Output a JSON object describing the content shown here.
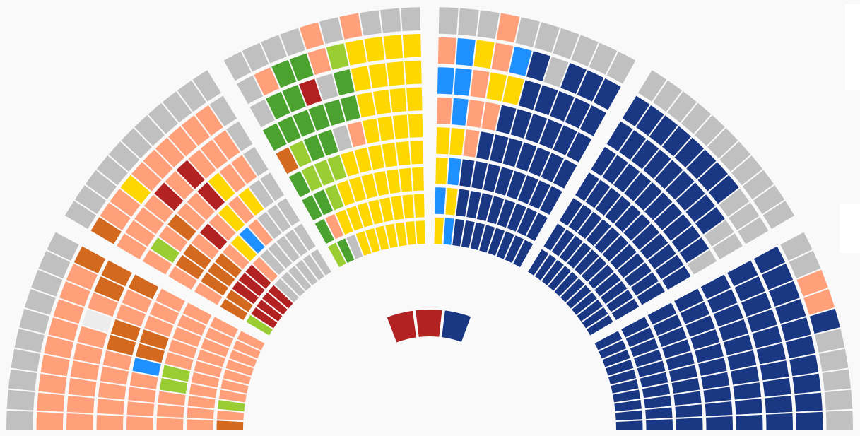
{
  "chart_data": {
    "type": "parliament",
    "sectors": [
      {
        "rows": [
          [
            "#c0c0c0",
            "#c0c0c0",
            "#c0c0c0",
            "#c0c0c0",
            "#c0c0c0",
            "#c0c0c0",
            "#c0c0c0",
            "#c0c0c0",
            "#c0c0c0",
            "#c0c0c0"
          ],
          [
            "#ffa07a",
            "#ffa07a",
            "#ffa07a",
            "#ffa07a",
            "#ffa07a",
            "#ffa07a",
            "#ffa07a",
            "#ffa07a",
            "#ffa07a",
            "#d2691e"
          ],
          [
            "#ffa07a",
            "#ffa07a",
            "#ffa07a",
            "#ffa07a",
            "#ffa07a",
            "#ffa07a",
            "#ececec",
            "#ffa07a",
            "#d2691e",
            "#d2691e"
          ],
          [
            "#ffa07a",
            "#ffa07a",
            "#ffa07a",
            "#ffa07a",
            "#ffa07a",
            "#d2691e",
            "#d2691e",
            "#ffa07a",
            "#ffa07a",
            "#d2691e"
          ],
          [
            "#ffa07a",
            "#ffa07a",
            "#ffa07a",
            "#ffa07a",
            "#1e90ff",
            "#d2691e",
            "#d2691e",
            "#ffa07a",
            "#ffa07a",
            "#ffa07a"
          ],
          [
            "#ffa07a",
            "#ffa07a",
            "#ffa07a",
            "#9acd32",
            "#9acd32",
            "#ffa07a",
            "#ffa07a",
            "#ffa07a",
            "#ffa07a",
            "#ffa07a"
          ],
          [
            "#ffa07a",
            "#ffa07a",
            "#ffa07a",
            "#ffa07a",
            "#ffa07a",
            "#ffa07a",
            "#ffa07a",
            "#ffa07a",
            "#ffa07a",
            "#ffa07a"
          ],
          [
            "#d2691e",
            "#ffa07a",
            "#9acd32",
            "#ffa07a",
            "#ffa07a",
            "#ffa07a",
            "#ffa07a",
            "#ffa07a",
            "#ffa07a",
            "#ffa07a"
          ]
        ]
      },
      {
        "rows": [
          [
            "#c0c0c0",
            "#c0c0c0",
            "#c0c0c0",
            "#c0c0c0",
            "#c0c0c0",
            "#c0c0c0",
            "#c0c0c0",
            "#c0c0c0",
            "#c0c0c0",
            "#c0c0c0",
            "#c0c0c0"
          ],
          [
            "#d2691e",
            "#ffa07a",
            "#ffa07a",
            "#ffd700",
            "#ffa07a",
            "#ffa07a",
            "#ffa07a",
            "#ffa07a",
            "#ffa07a",
            "#ffa07a",
            "#c0c0c0"
          ],
          [
            "#ffa07a",
            "#ffa07a",
            "#ffa07a",
            "#ffa07a",
            "#b22222",
            "#ffa07a",
            "#b22222",
            "#ffa07a",
            "#ffa07a",
            "#ffa07a",
            "#c0c0c0"
          ],
          [
            "#ffa07a",
            "#9acd32",
            "#ffa07a",
            "#d2691e",
            "#ffa07a",
            "#ffa07a",
            "#b22222",
            "#ffd700",
            "#ffa07a",
            "#ffa07a",
            "#c0c0c0"
          ],
          [
            "#ffa07a",
            "#d2691e",
            "#d2691e",
            "#ffa07a",
            "#b22222",
            "#ffa07a",
            "#ffd700",
            "#ffa07a",
            "#ffd700",
            "#c0c0c0",
            "#c0c0c0"
          ],
          [
            "#ffa07a",
            "#d2691e",
            "#d2691e",
            "#d2691e",
            "#ffa07a",
            "#ffd700",
            "#1e90ff",
            "#ffa07a",
            "#c0c0c0",
            "#c0c0c0",
            "#c0c0c0"
          ],
          [
            "#d2691e",
            "#d2691e",
            "#b22222",
            "#b22222",
            "#b22222",
            "#ffa07a",
            "#c0c0c0",
            "#c0c0c0",
            "#c0c0c0",
            "#c0c0c0",
            "#c0c0c0"
          ],
          [
            "#9acd32",
            "#b22222",
            "#b22222",
            "#b22222",
            "#b22222",
            "#c0c0c0",
            "#c0c0c0",
            "#c0c0c0",
            "#c0c0c0",
            "#c0c0c0",
            "#c0c0c0"
          ]
        ]
      },
      {
        "rows": [
          [
            "#c0c0c0",
            "#c0c0c0",
            "#c0c0c0",
            "#c0c0c0",
            "#ffa07a",
            "#c0c0c0",
            "#ffa07a",
            "#c0c0c0",
            "#c0c0c0",
            "#c0c0c0"
          ],
          [
            "#c0c0c0",
            "#ffa07a",
            "#4ca22f",
            "#4ca22f",
            "#ffa07a",
            "#9acd32",
            "#ffd700",
            "#ffd700",
            "#ffd700",
            "#ffd700"
          ],
          [
            "#c0c0c0",
            "#4ca22f",
            "#4ca22f",
            "#b22222",
            "#c0c0c0",
            "#4ca22f",
            "#ffd700",
            "#ffd700",
            "#ffd700",
            "#ffd700"
          ],
          [
            "#4ca22f",
            "#4ca22f",
            "#4ca22f",
            "#4ca22f",
            "#4ca22f",
            "#4ca22f",
            "#ffd700",
            "#ffd700",
            "#ffd700",
            "#ffd700"
          ],
          [
            "#d2691e",
            "#9acd32",
            "#4ca22f",
            "#4ca22f",
            "#c0c0c0",
            "#ffa07a",
            "#ffd700",
            "#ffd700",
            "#ffd700",
            "#ffd700"
          ],
          [
            "#4ca22f",
            "#9acd32",
            "#9acd32",
            "#9acd32",
            "#ffd700",
            "#ffd700",
            "#ffd700",
            "#ffd700",
            "#ffd700",
            "#ffd700"
          ],
          [
            "#4ca22f",
            "#4ca22f",
            "#9acd32",
            "#ffd700",
            "#ffd700",
            "#ffd700",
            "#ffd700",
            "#ffd700",
            "#ffd700",
            "#ffd700"
          ],
          [
            "#4ca22f",
            "#ffa07a",
            "#ffd700",
            "#ffd700",
            "#ffd700",
            "#ffd700",
            "#ffd700",
            "#ffd700",
            "#ffd700",
            "#ffd700"
          ],
          [
            "#9acd32",
            "#4ca22f",
            "#c0c0c0",
            "#ffd700",
            "#ffd700",
            "#ffd700",
            "#ffd700",
            "#ffd700",
            "#ffd700",
            "#ffd700"
          ]
        ]
      },
      {
        "rows": [
          [
            "#c0c0c0",
            "#c0c0c0",
            "#c0c0c0",
            "#ffa07a",
            "#c0c0c0",
            "#c0c0c0",
            "#c0c0c0",
            "#c0c0c0",
            "#c0c0c0",
            "#c0c0c0"
          ],
          [
            "#ffa07a",
            "#1e90ff",
            "#ffd700",
            "#ffa07a",
            "#1e90ff",
            "#1a3784",
            "#c0c0c0",
            "#1a3784",
            "#1a3784",
            "#1a3784"
          ],
          [
            "#1e90ff",
            "#1e90ff",
            "#ffa07a",
            "#ffd700",
            "#ffd700",
            "#1a3784",
            "#1a3784",
            "#1a3784",
            "#1a3784",
            "#1a3784"
          ],
          [
            "#ffa07a",
            "#1e90ff",
            "#ffa07a",
            "#ffa07a",
            "#1a3784",
            "#1a3784",
            "#1a3784",
            "#1a3784",
            "#1a3784",
            "#1a3784"
          ],
          [
            "#ffd700",
            "#ffd700",
            "#ffa07a",
            "#1a3784",
            "#1a3784",
            "#1a3784",
            "#1a3784",
            "#1a3784",
            "#1a3784",
            "#1a3784"
          ],
          [
            "#ffd700",
            "#1e90ff",
            "#1a3784",
            "#1a3784",
            "#1a3784",
            "#1a3784",
            "#1a3784",
            "#1a3784",
            "#1a3784",
            "#1a3784"
          ],
          [
            "#1e90ff",
            "#ffd700",
            "#1a3784",
            "#1a3784",
            "#1a3784",
            "#1a3784",
            "#1a3784",
            "#1a3784",
            "#1a3784",
            "#1a3784"
          ],
          [
            "#ffd700",
            "#1e90ff",
            "#1a3784",
            "#1a3784",
            "#1a3784",
            "#1a3784",
            "#1a3784",
            "#1a3784",
            "#1a3784",
            "#1a3784"
          ]
        ]
      },
      {
        "rows": [
          [
            "#c0c0c0",
            "#c0c0c0",
            "#c0c0c0",
            "#c0c0c0",
            "#c0c0c0",
            "#c0c0c0",
            "#c0c0c0",
            "#c0c0c0",
            "#c0c0c0",
            "#c0c0c0",
            "#c0c0c0"
          ],
          [
            "#1a3784",
            "#1a3784",
            "#1a3784",
            "#1a3784",
            "#1a3784",
            "#1a3784",
            "#1a3784",
            "#1a3784",
            "#c0c0c0",
            "#c0c0c0",
            "#c0c0c0"
          ],
          [
            "#1a3784",
            "#1a3784",
            "#1a3784",
            "#1a3784",
            "#1a3784",
            "#1a3784",
            "#1a3784",
            "#1a3784",
            "#1a3784",
            "#c0c0c0",
            "#c0c0c0"
          ],
          [
            "#1a3784",
            "#1a3784",
            "#1a3784",
            "#1a3784",
            "#1a3784",
            "#1a3784",
            "#1a3784",
            "#1a3784",
            "#1a3784",
            "#1a3784",
            "#c0c0c0"
          ],
          [
            "#1a3784",
            "#1a3784",
            "#1a3784",
            "#1a3784",
            "#1a3784",
            "#1a3784",
            "#1a3784",
            "#1a3784",
            "#1a3784",
            "#1a3784",
            "#1a3784"
          ],
          [
            "#1a3784",
            "#1a3784",
            "#1a3784",
            "#1a3784",
            "#1a3784",
            "#1a3784",
            "#1a3784",
            "#1a3784",
            "#1a3784",
            "#1a3784",
            "#1a3784"
          ],
          [
            "#1a3784",
            "#1a3784",
            "#1a3784",
            "#1a3784",
            "#1a3784",
            "#1a3784",
            "#1a3784",
            "#1a3784",
            "#1a3784",
            "#1a3784",
            "#1a3784"
          ],
          [
            "#1a3784",
            "#1a3784",
            "#1a3784",
            "#1a3784",
            "#1a3784",
            "#1a3784",
            "#1a3784",
            "#1a3784",
            "#1a3784",
            "#1a3784",
            "#1a3784"
          ]
        ]
      },
      {
        "rows": [
          [
            "#c0c0c0",
            "#c0c0c0",
            "#ffa07a",
            "#ffa07a",
            "#1a3784",
            "#c0c0c0",
            "#c0c0c0",
            "#c0c0c0",
            "#c0c0c0",
            "#c0c0c0"
          ],
          [
            "#1a3784",
            "#1a3784",
            "#1a3784",
            "#1a3784",
            "#1a3784",
            "#1a3784",
            "#1a3784",
            "#1a3784",
            "#1a3784",
            "#1a3784"
          ],
          [
            "#1a3784",
            "#1a3784",
            "#1a3784",
            "#1a3784",
            "#1a3784",
            "#1a3784",
            "#1a3784",
            "#1a3784",
            "#1a3784",
            "#1a3784"
          ],
          [
            "#1a3784",
            "#1a3784",
            "#1a3784",
            "#1a3784",
            "#1a3784",
            "#1a3784",
            "#1a3784",
            "#1a3784",
            "#1a3784",
            "#1a3784"
          ],
          [
            "#1a3784",
            "#1a3784",
            "#1a3784",
            "#1a3784",
            "#1a3784",
            "#1a3784",
            "#1a3784",
            "#1a3784",
            "#1a3784",
            "#1a3784"
          ],
          [
            "#1a3784",
            "#1a3784",
            "#1a3784",
            "#1a3784",
            "#1a3784",
            "#1a3784",
            "#1a3784",
            "#1a3784",
            "#1a3784",
            "#1a3784"
          ],
          [
            "#1a3784",
            "#1a3784",
            "#1a3784",
            "#1a3784",
            "#1a3784",
            "#1a3784",
            "#1a3784",
            "#1a3784",
            "#1a3784",
            "#1a3784"
          ],
          [
            "#1a3784",
            "#1a3784",
            "#1a3784",
            "#1a3784",
            "#1a3784",
            "#1a3784",
            "#1a3784",
            "#1a3784",
            "#1a3784",
            "#1a3784"
          ]
        ]
      }
    ],
    "center_seats": [
      "#b22222",
      "#b22222",
      "#1a3784"
    ],
    "party_colors": {
      "unassigned": "#c0c0c0",
      "vacant": "#ececec",
      "salmon": "#ffa07a",
      "orange": "#d2691e",
      "dark_red": "#b22222",
      "yellow": "#ffd700",
      "blue": "#1e90ff",
      "green": "#4ca22f",
      "light_green": "#9acd32",
      "navy": "#1a3784"
    }
  }
}
